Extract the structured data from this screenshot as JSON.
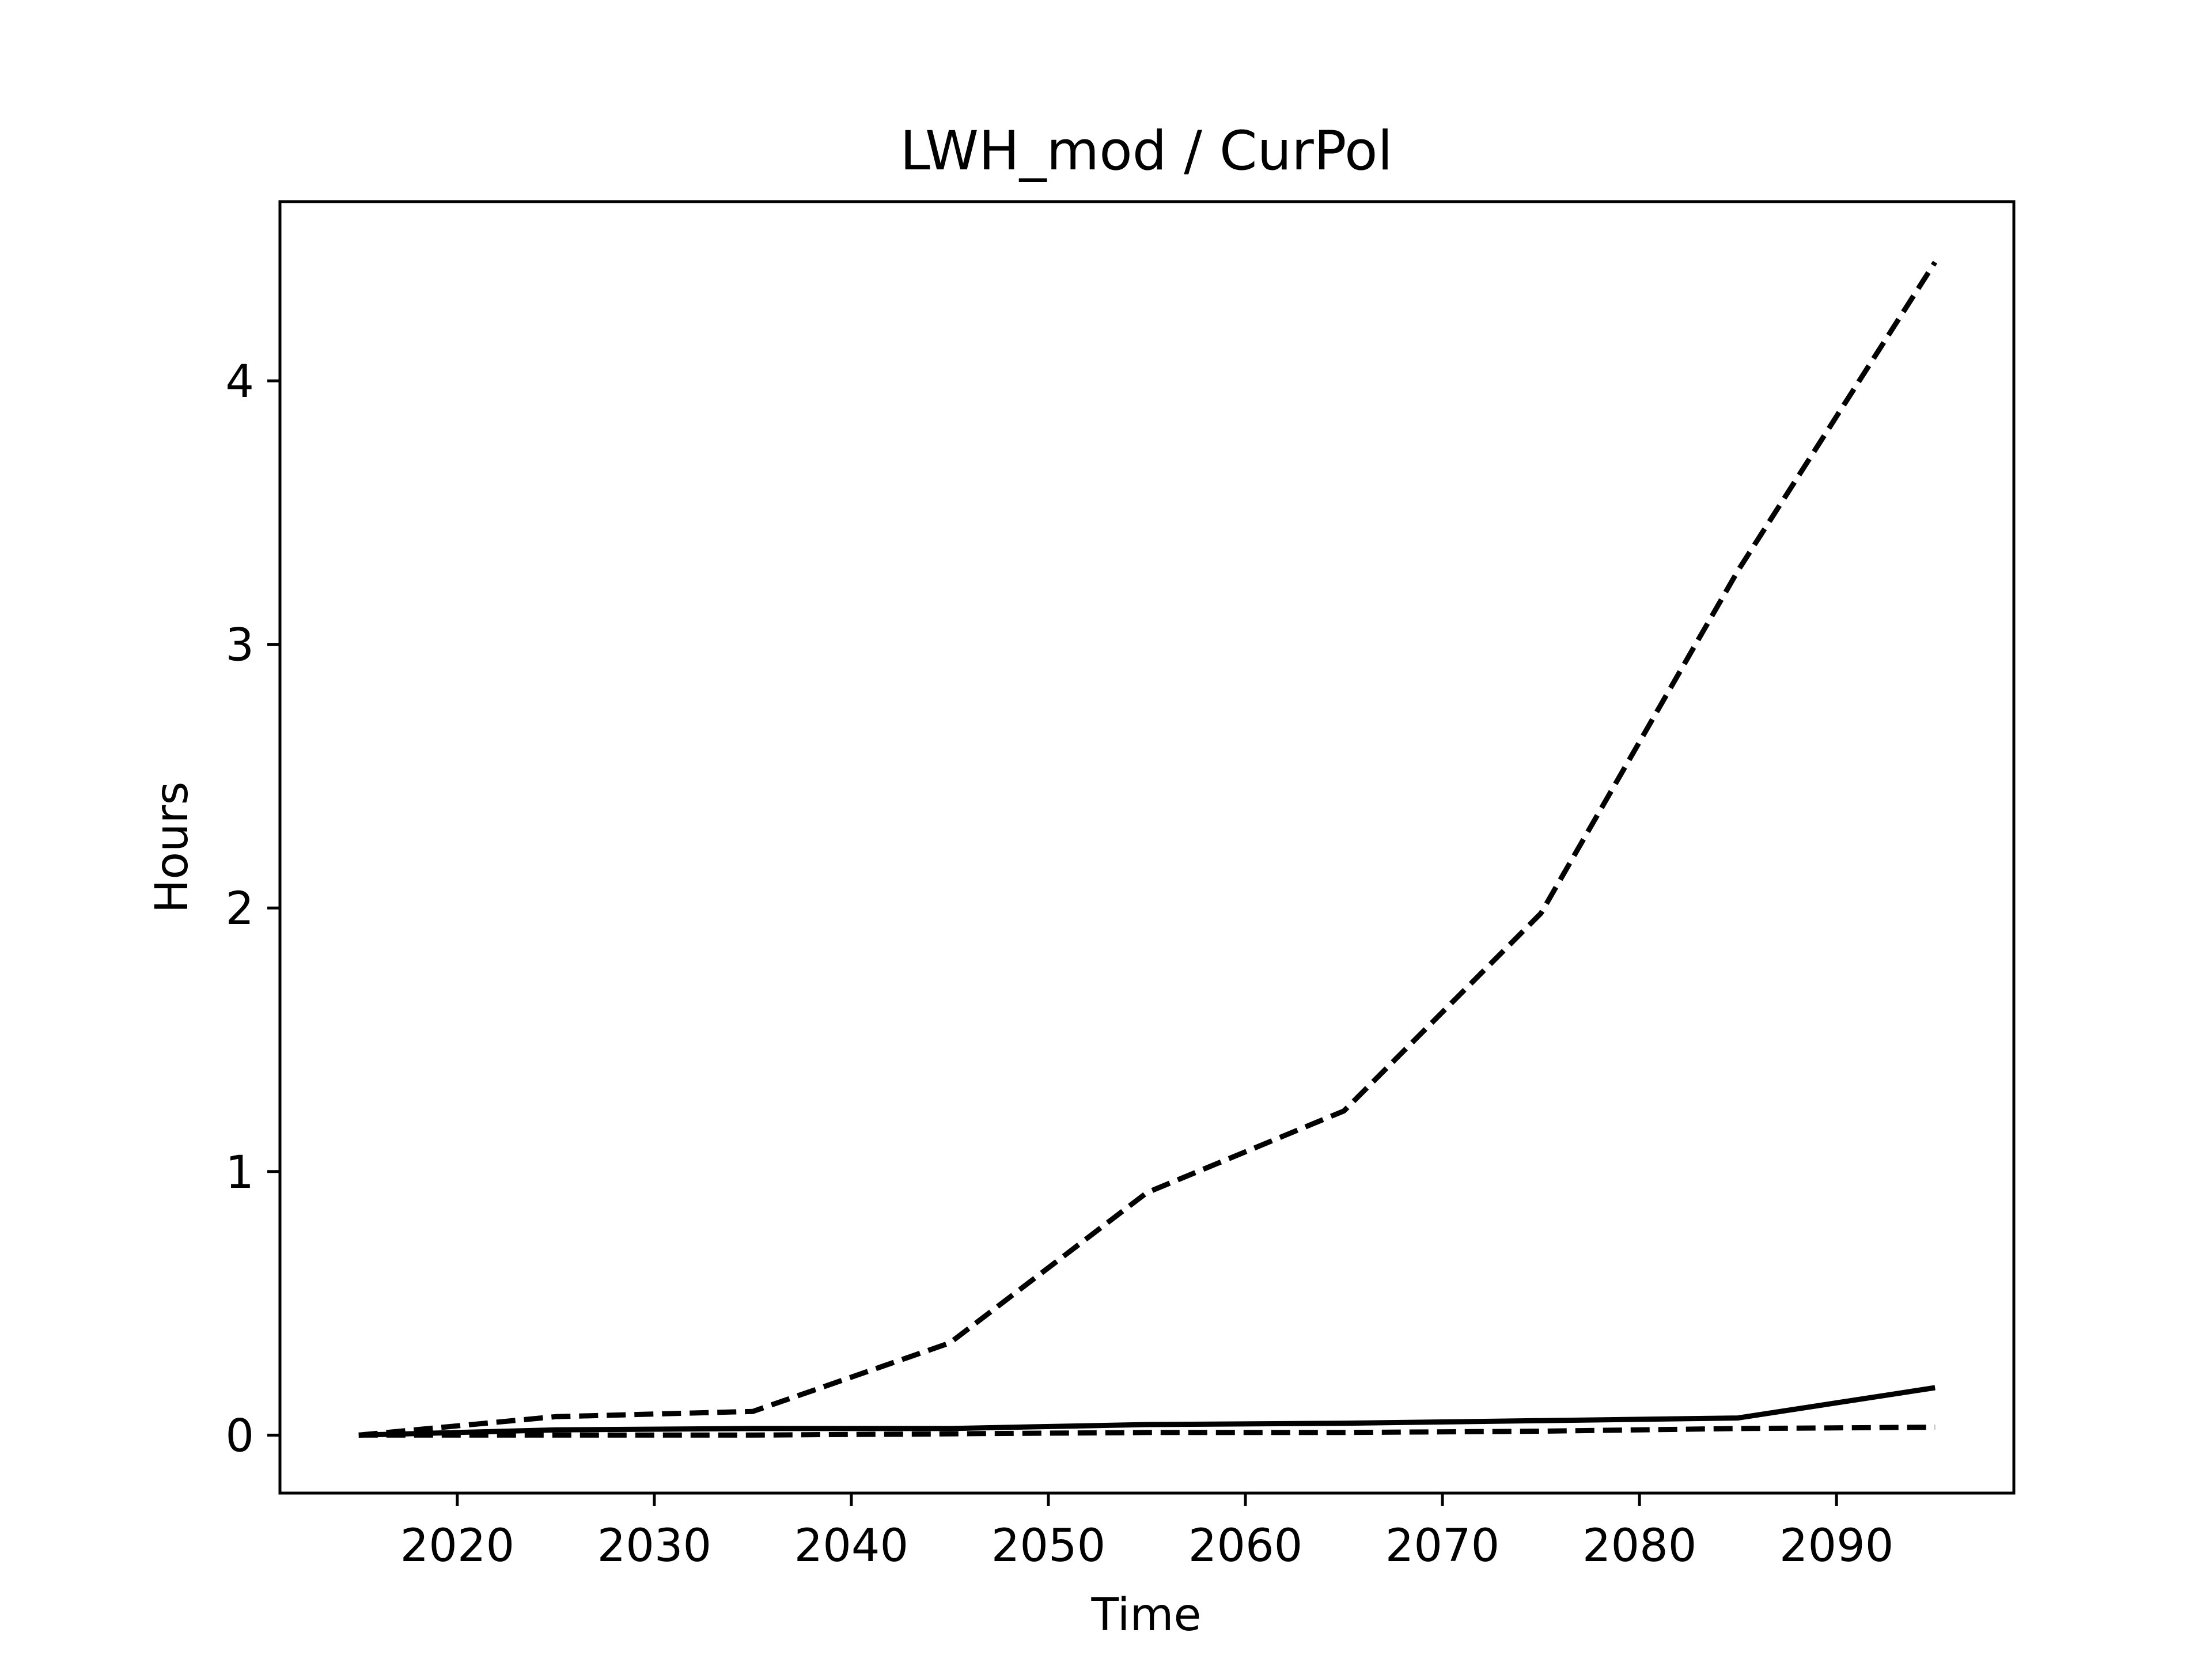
{
  "chart_data": {
    "type": "line",
    "title": "LWH_mod / CurPol",
    "xlabel": "Time",
    "ylabel": "Hours",
    "xlim": [
      2011,
      2099
    ],
    "ylim": [
      -0.22,
      4.68
    ],
    "xticks": [
      2020,
      2030,
      2040,
      2050,
      2060,
      2070,
      2080,
      2090
    ],
    "yticks": [
      0,
      1,
      2,
      3,
      4
    ],
    "grid": false,
    "legend": "none",
    "color": "#000000",
    "x": [
      2015,
      2025,
      2035,
      2045,
      2055,
      2065,
      2075,
      2085,
      2095
    ],
    "series": [
      {
        "style": "dashed",
        "values": [
          0.0,
          0.07,
          0.09,
          0.35,
          0.92,
          1.23,
          1.98,
          3.28,
          4.45
        ]
      },
      {
        "style": "solid",
        "values": [
          0.0,
          0.02,
          0.025,
          0.025,
          0.04,
          0.045,
          0.055,
          0.065,
          0.18
        ]
      },
      {
        "style": "dashed",
        "values": [
          0.0,
          0.0,
          0.0,
          0.005,
          0.01,
          0.01,
          0.015,
          0.025,
          0.03
        ]
      }
    ]
  }
}
